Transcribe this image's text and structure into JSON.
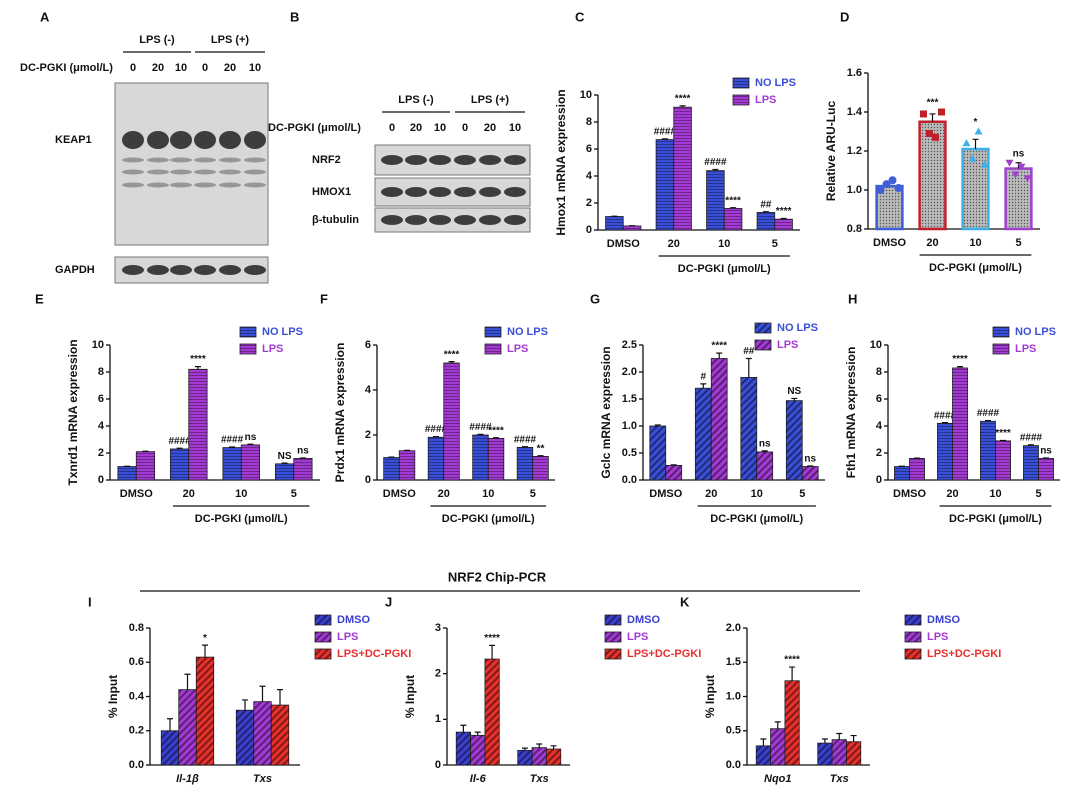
{
  "panel_labels": [
    "A",
    "B",
    "C",
    "D",
    "E",
    "F",
    "G",
    "H",
    "I",
    "J",
    "K"
  ],
  "chip_title": "NRF2 Chip-PCR",
  "blots": [
    {
      "lps_labels": [
        "LPS (-)",
        "LPS (+)"
      ],
      "dose_label": "DC-PGKI (μmol/L)",
      "lanes": [
        "0",
        "20",
        "10",
        "0",
        "20",
        "10"
      ],
      "bands": [
        "KEAP1",
        "GAPDH"
      ]
    },
    {
      "lps_labels": [
        "LPS (-)",
        "LPS (+)"
      ],
      "dose_label": "DC-PGKI (μmol/L)",
      "lanes": [
        "0",
        "20",
        "10",
        "0",
        "20",
        "10"
      ],
      "bands": [
        "NRF2",
        "HMOX1",
        "β-tubulin"
      ]
    }
  ],
  "chart_data": [
    {
      "type": "bar",
      "ylabel": "Hmox1 mRNA expression",
      "categories": [
        "DMSO",
        "20",
        "10",
        "5"
      ],
      "xlabel": "DC-PGKI (μmol/L)",
      "ylim": [
        0,
        10
      ],
      "yticks": [
        0,
        2,
        4,
        6,
        8,
        10
      ],
      "series": [
        {
          "name": "NO LPS",
          "color": "#3a4fd8",
          "values": [
            1.0,
            6.7,
            4.4,
            1.3
          ],
          "errors": [
            0.02,
            0.05,
            0.08,
            0.05
          ],
          "annotations": [
            null,
            "####",
            "####",
            "##"
          ]
        },
        {
          "name": "LPS",
          "color": "#a43ad4",
          "values": [
            0.3,
            9.1,
            1.6,
            0.8
          ],
          "errors": [
            0.02,
            0.1,
            0.05,
            0.05
          ],
          "annotations": [
            null,
            "****",
            "****",
            "****"
          ]
        }
      ]
    },
    {
      "type": "bar",
      "ylabel": "Relative ARU-Luc",
      "categories": [
        "DMSO",
        "20",
        "10",
        "5"
      ],
      "xlabel": "DC-PGKI (μmol/L)",
      "ylim": [
        0.8,
        1.6
      ],
      "yticks": [
        0.8,
        {
          "value": 1,
          "label": "1.0"
        },
        1.2,
        1.4,
        1.6
      ],
      "values": [
        1.02,
        1.35,
        1.21,
        1.11
      ],
      "errors": [
        0.02,
        0.04,
        0.05,
        0.03
      ],
      "colors": [
        "#3f5fd8",
        "#c0202a",
        "#3bb0e8",
        "#a040d0"
      ],
      "points": [
        [
          1.0,
          1.03,
          1.05,
          1.01
        ],
        [
          1.39,
          1.29,
          1.27,
          1.4
        ],
        [
          1.24,
          1.16,
          1.3,
          1.13
        ],
        [
          1.14,
          1.08,
          1.12,
          1.06
        ]
      ],
      "annotations": [
        null,
        "***",
        "*",
        "ns"
      ]
    },
    {
      "type": "bar",
      "ylabel": "Txnrd1 mRNA expression",
      "categories": [
        "DMSO",
        "20",
        "10",
        "5"
      ],
      "xlabel": "DC-PGKI (μmol/L)",
      "ylim": [
        0,
        10
      ],
      "yticks": [
        0,
        2,
        4,
        6,
        8,
        10
      ],
      "series": [
        {
          "name": "NO LPS",
          "color": "#3a4fd8",
          "values": [
            1.0,
            2.3,
            2.4,
            1.2
          ],
          "errors": [
            0.02,
            0.05,
            0.05,
            0.05
          ],
          "annotations": [
            null,
            "####",
            "####",
            "NS"
          ]
        },
        {
          "name": "LPS",
          "color": "#a43ad4",
          "values": [
            2.1,
            8.2,
            2.6,
            1.6
          ],
          "errors": [
            0.03,
            0.2,
            0.05,
            0.03
          ],
          "annotations": [
            null,
            "****",
            "ns",
            "ns"
          ]
        }
      ]
    },
    {
      "type": "bar",
      "ylabel": "Prdx1 mRNA expression",
      "categories": [
        "DMSO",
        "20",
        "10",
        "5"
      ],
      "xlabel": "DC-PGKI (μmol/L)",
      "ylim": [
        0,
        6
      ],
      "yticks": [
        0,
        2,
        4,
        6
      ],
      "series": [
        {
          "name": "NO LPS",
          "color": "#3a4fd8",
          "values": [
            1.0,
            1.9,
            2.0,
            1.45
          ],
          "errors": [
            0.02,
            0.03,
            0.03,
            0.03
          ],
          "annotations": [
            null,
            "####",
            "####",
            "####"
          ]
        },
        {
          "name": "LPS",
          "color": "#a43ad4",
          "values": [
            1.3,
            5.2,
            1.85,
            1.05
          ],
          "errors": [
            0.02,
            0.06,
            0.03,
            0.03
          ],
          "annotations": [
            null,
            "****",
            "****",
            "**"
          ]
        }
      ]
    },
    {
      "type": "bar",
      "ylabel": "Gclc mRNA expression",
      "categories": [
        "DMSO",
        "20",
        "10",
        "5"
      ],
      "xlabel": "DC-PGKI (μmol/L)",
      "ylim": [
        0,
        2.5
      ],
      "yticks": [
        {
          "value": 0,
          "label": "0.0"
        },
        0.5,
        {
          "value": 1,
          "label": "1.0"
        },
        1.5,
        {
          "value": 2,
          "label": "2.0"
        },
        2.5
      ],
      "series": [
        {
          "name": "NO LPS",
          "color": "#3a4fd8",
          "values": [
            1.0,
            1.7,
            1.9,
            1.47
          ],
          "errors": [
            0.02,
            0.08,
            0.35,
            0.04
          ],
          "annotations": [
            null,
            "#",
            "##",
            "NS"
          ]
        },
        {
          "name": "LPS",
          "color": "#a43ad4",
          "values": [
            0.27,
            2.25,
            0.52,
            0.25
          ],
          "errors": [
            0.01,
            0.1,
            0.02,
            0.01
          ],
          "annotations": [
            null,
            "****",
            "ns",
            "ns"
          ]
        }
      ]
    },
    {
      "type": "bar",
      "ylabel": "Fth1 mRNA expression",
      "categories": [
        "DMSO",
        "20",
        "10",
        "5"
      ],
      "xlabel": "DC-PGKI (μmol/L)",
      "ylim": [
        0,
        10
      ],
      "yticks": [
        0,
        2,
        4,
        6,
        8,
        10
      ],
      "series": [
        {
          "name": "NO LPS",
          "color": "#3a4fd8",
          "values": [
            1.0,
            4.2,
            4.35,
            2.55
          ],
          "errors": [
            0.02,
            0.05,
            0.05,
            0.05
          ],
          "annotations": [
            null,
            "####",
            "####",
            "####"
          ]
        },
        {
          "name": "LPS",
          "color": "#a43ad4",
          "values": [
            1.6,
            8.3,
            2.9,
            1.6
          ],
          "errors": [
            0.02,
            0.1,
            0.03,
            0.03
          ],
          "annotations": [
            null,
            "****",
            "****",
            "ns"
          ]
        }
      ]
    },
    {
      "type": "bar",
      "ylabel": "% Input",
      "categories": [
        "Il-1β",
        "Txs"
      ],
      "ylim": [
        0,
        0.8
      ],
      "yticks": [
        {
          "value": 0,
          "label": "0.0"
        },
        0.2,
        0.4,
        0.6,
        0.8
      ],
      "series": [
        {
          "name": "DMSO",
          "color": "#3a3fd0",
          "values": [
            0.2,
            0.32
          ],
          "errors": [
            0.07,
            0.06
          ],
          "annotations": [
            null,
            null
          ]
        },
        {
          "name": "LPS",
          "color": "#a33ad6",
          "values": [
            0.44,
            0.37
          ],
          "errors": [
            0.09,
            0.09
          ],
          "annotations": [
            null,
            null
          ]
        },
        {
          "name": "LPS+DC-PGKI",
          "color": "#e8302d",
          "values": [
            0.63,
            0.35
          ],
          "errors": [
            0.07,
            0.09
          ],
          "annotations": [
            "*",
            null
          ]
        }
      ]
    },
    {
      "type": "bar",
      "ylabel": "% Input",
      "categories": [
        "Il-6",
        "Txs"
      ],
      "ylim": [
        0,
        3
      ],
      "yticks": [
        0,
        1,
        2,
        3
      ],
      "series": [
        {
          "name": "DMSO",
          "color": "#3a3fd0",
          "values": [
            0.72,
            0.32
          ],
          "errors": [
            0.15,
            0.05
          ],
          "annotations": [
            null,
            null
          ]
        },
        {
          "name": "LPS",
          "color": "#a33ad6",
          "values": [
            0.65,
            0.38
          ],
          "errors": [
            0.07,
            0.08
          ],
          "annotations": [
            null,
            null
          ]
        },
        {
          "name": "LPS+DC-PGKI",
          "color": "#e8302d",
          "values": [
            2.32,
            0.35
          ],
          "errors": [
            0.3,
            0.07
          ],
          "annotations": [
            "****",
            null
          ]
        }
      ]
    },
    {
      "type": "bar",
      "ylabel": "% Input",
      "categories": [
        "Nqo1",
        "Txs"
      ],
      "ylim": [
        0,
        2
      ],
      "yticks": [
        {
          "value": 0,
          "label": "0.0"
        },
        0.5,
        {
          "value": 1,
          "label": "1.0"
        },
        1.5,
        {
          "value": 2,
          "label": "2.0"
        }
      ],
      "series": [
        {
          "name": "DMSO",
          "color": "#3a3fd0",
          "values": [
            0.28,
            0.32
          ],
          "errors": [
            0.1,
            0.06
          ],
          "annotations": [
            null,
            null
          ]
        },
        {
          "name": "LPS",
          "color": "#a33ad6",
          "values": [
            0.53,
            0.37
          ],
          "errors": [
            0.1,
            0.09
          ],
          "annotations": [
            null,
            null
          ]
        },
        {
          "name": "LPS+DC-PGKI",
          "color": "#e8302d",
          "values": [
            1.23,
            0.34
          ],
          "errors": [
            0.2,
            0.09
          ],
          "annotations": [
            "****",
            null
          ]
        }
      ]
    }
  ]
}
